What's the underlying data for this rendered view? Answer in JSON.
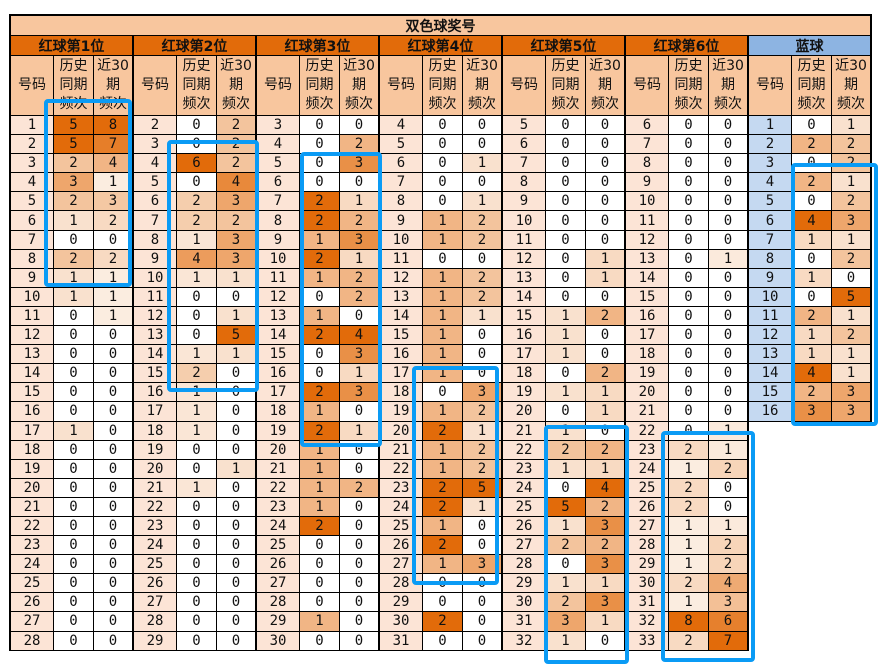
{
  "title": "双色球奖号",
  "subheaders": {
    "num": "号码",
    "hist": "历史\n同期\n频次",
    "recent": "近30\n期\n频次"
  },
  "colors": {
    "scale_max": "#E26B0A",
    "scale_min": "#FFFFFF",
    "red_header": "#E26B0A",
    "blue_header": "#8DB4E2",
    "highlight_box": "#0A9BF5"
  },
  "groups": [
    {
      "label": "红球第1位",
      "start": 1,
      "hist": [
        5,
        5,
        2,
        3,
        2,
        1,
        0,
        2,
        1,
        1,
        0,
        0,
        0,
        0,
        0,
        0,
        1,
        0,
        0,
        0,
        0,
        0,
        0,
        0,
        0,
        0,
        0,
        0
      ],
      "recent": [
        8,
        7,
        4,
        1,
        3,
        2,
        0,
        2,
        1,
        1,
        1,
        0,
        0,
        0,
        0,
        0,
        0,
        0,
        0,
        0,
        0,
        0,
        0,
        0,
        0,
        0,
        0,
        0
      ]
    },
    {
      "label": "红球第2位",
      "start": 2,
      "hist": [
        0,
        0,
        6,
        0,
        2,
        2,
        1,
        4,
        1,
        0,
        0,
        0,
        1,
        2,
        1,
        1,
        1,
        0,
        0,
        1,
        0,
        0,
        0,
        0,
        0,
        0,
        0,
        0
      ],
      "recent": [
        2,
        2,
        2,
        4,
        3,
        2,
        3,
        3,
        1,
        0,
        1,
        5,
        1,
        0,
        0,
        0,
        0,
        0,
        1,
        0,
        0,
        0,
        0,
        0,
        0,
        0,
        0,
        0
      ]
    },
    {
      "label": "红球第3位",
      "start": 3,
      "hist": [
        0,
        0,
        0,
        0,
        2,
        2,
        1,
        2,
        1,
        0,
        1,
        2,
        0,
        0,
        2,
        1,
        2,
        1,
        1,
        1,
        1,
        2,
        0,
        0,
        0,
        0,
        1,
        0
      ],
      "recent": [
        0,
        2,
        3,
        0,
        1,
        2,
        3,
        1,
        2,
        2,
        0,
        4,
        3,
        1,
        3,
        0,
        1,
        0,
        0,
        2,
        0,
        0,
        0,
        0,
        0,
        0,
        0,
        0
      ]
    },
    {
      "label": "红球第4位",
      "start": 4,
      "hist": [
        0,
        0,
        0,
        0,
        0,
        1,
        1,
        0,
        1,
        1,
        1,
        1,
        1,
        1,
        0,
        1,
        2,
        1,
        1,
        2,
        2,
        1,
        2,
        1,
        0,
        0,
        2,
        0
      ],
      "recent": [
        0,
        0,
        1,
        0,
        1,
        2,
        2,
        0,
        2,
        2,
        1,
        0,
        0,
        0,
        3,
        2,
        1,
        2,
        2,
        5,
        1,
        0,
        0,
        3,
        0,
        0,
        0,
        0
      ]
    },
    {
      "label": "红球第5位",
      "start": 5,
      "hist": [
        0,
        0,
        0,
        0,
        0,
        0,
        0,
        0,
        0,
        0,
        1,
        1,
        1,
        0,
        1,
        0,
        1,
        2,
        1,
        0,
        5,
        1,
        2,
        0,
        1,
        2,
        3,
        1
      ],
      "recent": [
        0,
        0,
        0,
        0,
        0,
        0,
        0,
        1,
        1,
        0,
        2,
        0,
        0,
        2,
        1,
        1,
        0,
        2,
        1,
        4,
        2,
        3,
        2,
        3,
        1,
        3,
        1,
        0
      ]
    },
    {
      "label": "红球第6位",
      "start": 6,
      "hist": [
        0,
        0,
        0,
        0,
        0,
        0,
        0,
        0,
        0,
        0,
        0,
        0,
        0,
        0,
        0,
        0,
        0,
        2,
        1,
        2,
        2,
        1,
        1,
        1,
        2,
        1,
        8,
        2
      ],
      "recent": [
        0,
        0,
        0,
        0,
        0,
        0,
        0,
        1,
        0,
        0,
        0,
        0,
        0,
        0,
        0,
        0,
        1,
        1,
        2,
        0,
        0,
        1,
        2,
        2,
        4,
        3,
        6,
        7
      ]
    },
    {
      "label": "蓝球",
      "start": 1,
      "blue": true,
      "hist": [
        0,
        2,
        0,
        2,
        0,
        4,
        1,
        0,
        1,
        0,
        2,
        1,
        1,
        4,
        2,
        3
      ],
      "recent": [
        1,
        2,
        2,
        1,
        2,
        3,
        1,
        2,
        0,
        5,
        1,
        2,
        1,
        1,
        3,
        3
      ]
    }
  ]
}
